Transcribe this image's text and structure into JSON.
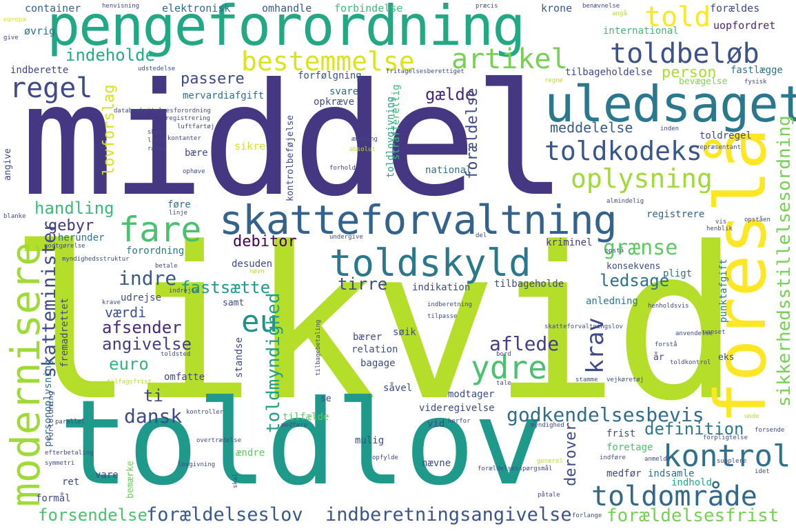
{
  "words": [
    {
      "text": "middel",
      "color": "#453781"
    },
    {
      "text": "likvid",
      "color": "#b5de2b"
    },
    {
      "text": "toldlov",
      "color": "#1f9a8a"
    },
    {
      "text": "pengeforordning",
      "color": "#22a884"
    },
    {
      "text": "uledsaget",
      "color": "#2a788e"
    },
    {
      "text": "foreslå",
      "color": "#fde725"
    },
    {
      "text": "skatteforvaltning",
      "color": "#33638d"
    },
    {
      "text": "toldskyld",
      "color": "#2a788e"
    },
    {
      "text": "modernisere",
      "color": "#a0da39"
    },
    {
      "text": "toldbeløb",
      "color": "#3b528b"
    },
    {
      "text": "toldområde",
      "color": "#31688e"
    },
    {
      "text": "kontrol",
      "color": "#2c728e"
    },
    {
      "text": "toldkodeks",
      "color": "#39568c"
    },
    {
      "text": "oplysning",
      "color": "#a0da39"
    },
    {
      "text": "bestemmelse",
      "color": "#dce319"
    },
    {
      "text": "artikel",
      "color": "#75d054"
    },
    {
      "text": "regel",
      "color": "#3e4a89"
    },
    {
      "text": "fare",
      "color": "#4ac16d"
    },
    {
      "text": "told",
      "color": "#fde725"
    },
    {
      "text": "eu",
      "color": "#21918c"
    },
    {
      "text": "ydre",
      "color": "#4ac16d"
    },
    {
      "text": "grænse",
      "color": "#5ec962"
    },
    {
      "text": "godkendelsesbevis",
      "color": "#2f6c8e"
    },
    {
      "text": "forældelseslov",
      "color": "#38598c"
    },
    {
      "text": "indberetningsangivelse",
      "color": "#3b528b"
    },
    {
      "text": "forældelsesfrist",
      "color": "#75d054"
    },
    {
      "text": "sikkerhedsstillelsesordning",
      "color": "#75d054"
    },
    {
      "text": "skatteminister",
      "color": "#3e4a89"
    },
    {
      "text": "toldmyndighed",
      "color": "#1fa187"
    },
    {
      "text": "krav",
      "color": "#3e4a89"
    },
    {
      "text": "indeholde",
      "color": "#25ab82"
    },
    {
      "text": "passere",
      "color": "#3e4989"
    },
    {
      "text": "person",
      "color": "#a8db34"
    },
    {
      "text": "gælde",
      "color": "#482878"
    },
    {
      "text": "handling",
      "color": "#3aba76"
    },
    {
      "text": "gebyr",
      "color": "#453781"
    },
    {
      "text": "indre",
      "color": "#38598c"
    },
    {
      "text": "fastsætte",
      "color": "#1f9a8a"
    },
    {
      "text": "tirre",
      "color": "#3e4a89"
    },
    {
      "text": "ledsage",
      "color": "#2d708e"
    },
    {
      "text": "afsender",
      "color": "#482878"
    },
    {
      "text": "angivelse",
      "color": "#433e85"
    },
    {
      "text": "aflede",
      "color": "#433e85"
    },
    {
      "text": "dansk",
      "color": "#3e4a89"
    },
    {
      "text": "definition",
      "color": "#2a788e"
    },
    {
      "text": "forsendelse",
      "color": "#4ac16d"
    },
    {
      "text": "euro",
      "color": "#31b57b"
    },
    {
      "text": "værdi",
      "color": "#3b528b"
    },
    {
      "text": "ti",
      "color": "#3e4989"
    },
    {
      "text": "lovforslag",
      "color": "#d8e219"
    },
    {
      "text": "forældelse",
      "color": "#3e4a89"
    },
    {
      "text": "meddelelse",
      "color": "#38598c"
    },
    {
      "text": "debitor",
      "color": "#440154"
    },
    {
      "text": "derover",
      "color": "#3e4a89"
    },
    {
      "text": "container",
      "color": "#33638d"
    },
    {
      "text": "elektronisk",
      "color": "#2f6c8e"
    },
    {
      "text": "omhandle",
      "color": "#38598c"
    },
    {
      "text": "forbindelse",
      "color": "#3dbc74"
    },
    {
      "text": "krone",
      "color": "#38598c"
    },
    {
      "text": "forældes",
      "color": "#3e4a89"
    },
    {
      "text": "uopfordret",
      "color": "#482878"
    },
    {
      "text": "international",
      "color": "#3aba76"
    },
    {
      "text": "øvrig",
      "color": "#2c728e"
    },
    {
      "text": "indberette",
      "color": "#404688"
    },
    {
      "text": "mervardiafgift",
      "color": "#2d708e"
    },
    {
      "text": "forfølgning",
      "color": "#3b528b"
    },
    {
      "text": "tilbageholdelse",
      "color": "#3e4a89"
    },
    {
      "text": "fastlægge",
      "color": "#2c728e"
    },
    {
      "text": "svare",
      "color": "#31688e"
    },
    {
      "text": "opkræve",
      "color": "#3e4a89"
    },
    {
      "text": "bevægelse",
      "color": "#84d44b"
    },
    {
      "text": "registrere",
      "color": "#33638d"
    },
    {
      "text": "national",
      "color": "#2c728e"
    },
    {
      "text": "toldregel",
      "color": "#3e4a89"
    },
    {
      "text": "sikre",
      "color": "#d8e219"
    },
    {
      "text": "bære",
      "color": "#3e4a89"
    },
    {
      "text": "føre",
      "color": "#2c728e"
    },
    {
      "text": "herunder",
      "color": "#2c728e"
    },
    {
      "text": "forordning",
      "color": "#2a788e"
    },
    {
      "text": "desuden",
      "color": "#3e4a89"
    },
    {
      "text": "kriminel",
      "color": "#453781"
    },
    {
      "text": "konsekvens",
      "color": "#3e4a89"
    },
    {
      "text": "pligt",
      "color": "#2c728e"
    },
    {
      "text": "indikation",
      "color": "#3e4a89"
    },
    {
      "text": "tilbageholde",
      "color": "#3e4989"
    },
    {
      "text": "udrejse",
      "color": "#3e4a89"
    },
    {
      "text": "anledning",
      "color": "#2a788e"
    },
    {
      "text": "samt",
      "color": "#3e4a89"
    },
    {
      "text": "søik",
      "color": "#3e4989"
    },
    {
      "text": "bærer",
      "color": "#3e4a89"
    },
    {
      "text": "relation",
      "color": "#3b528b"
    },
    {
      "text": "bagage",
      "color": "#3e4a89"
    },
    {
      "text": "såvel",
      "color": "#3e4989"
    },
    {
      "text": "omfatte",
      "color": "#3e4a89"
    },
    {
      "text": "modtager",
      "color": "#3e4a89"
    },
    {
      "text": "videregivelse",
      "color": "#3e4a89"
    },
    {
      "text": "tilfælde",
      "color": "#5ec962"
    },
    {
      "text": "vid",
      "color": "#3e4a89"
    },
    {
      "text": "mulig",
      "color": "#3e4989"
    },
    {
      "text": "frist",
      "color": "#3e4a89"
    },
    {
      "text": "foretage",
      "color": "#4ac16d"
    },
    {
      "text": "nævne",
      "color": "#3e4a89"
    },
    {
      "text": "medfør",
      "color": "#3e4989"
    },
    {
      "text": "indsamle",
      "color": "#2c728e"
    },
    {
      "text": "indhold",
      "color": "#22a884"
    },
    {
      "text": "ændre",
      "color": "#5ec962"
    },
    {
      "text": "vare",
      "color": "#3e4a89"
    },
    {
      "text": "ret",
      "color": "#3e4989"
    },
    {
      "text": "formål",
      "color": "#3e4a89"
    },
    {
      "text": "bemærke",
      "color": "#6ccd5a"
    },
    {
      "text": "se",
      "color": "#3e4a89"
    },
    {
      "text": "eks",
      "color": "#3e4a89"
    },
    {
      "text": "år",
      "color": "#3e4a89"
    },
    {
      "text": "standse",
      "color": "#3e4a89"
    },
    {
      "text": "personoplysning",
      "color": "#2c728e"
    },
    {
      "text": "fremadrettet",
      "color": "#3e4989"
    },
    {
      "text": "angive",
      "color": "#3e4a89"
    },
    {
      "text": "punktafgift",
      "color": "#2a788e"
    },
    {
      "text": "kontrolbeføjelse",
      "color": "#3e4a89"
    },
    {
      "text": "toldlovgivning",
      "color": "#22a884"
    },
    {
      "text": "strafferetlig",
      "color": "#3aba76"
    },
    {
      "text": "henvisning",
      "color": "#3e4a89"
    },
    {
      "text": "præcis",
      "color": "#3e4a89"
    },
    {
      "text": "benævnelse",
      "color": "#3e4a89"
    },
    {
      "text": "angå",
      "color": "#b5de2b"
    },
    {
      "text": "udstedelse",
      "color": "#3e4a89"
    },
    {
      "text": "fritagelsesberettiget",
      "color": "#3e4a89"
    },
    {
      "text": "regne",
      "color": "#b5de2b"
    },
    {
      "text": "fysisk",
      "color": "#3e4a89"
    },
    {
      "text": "databeskyttelsesforordning",
      "color": "#3e4a89"
    },
    {
      "text": "registrering",
      "color": "#3e4a89"
    },
    {
      "text": "luftfartøj",
      "color": "#3e4a89"
    },
    {
      "text": "skat",
      "color": "#3e4a89"
    },
    {
      "text": "litra",
      "color": "#3e4a89"
    },
    {
      "text": "række",
      "color": "#3e4a89"
    },
    {
      "text": "kontanter",
      "color": "#3e4a89"
    },
    {
      "text": "absolut",
      "color": "#b5de2b"
    },
    {
      "text": "inden",
      "color": "#3e4a89"
    },
    {
      "text": "repræsentant",
      "color": "#3e4a89"
    },
    {
      "text": "ophøve",
      "color": "#3e4a89"
    },
    {
      "text": "forhold",
      "color": "#3e4a89"
    },
    {
      "text": "almindelig",
      "color": "#3e4a89"
    },
    {
      "text": "blanke",
      "color": "#3e4a89"
    },
    {
      "text": "linje",
      "color": "#3e4a89"
    },
    {
      "text": "godtgørelse",
      "color": "#3e4a89"
    },
    {
      "text": "myndighedsstruktur",
      "color": "#3e4a89"
    },
    {
      "text": "undergive",
      "color": "#3e4a89"
    },
    {
      "text": "del",
      "color": "#3e4a89"
    },
    {
      "text": "opstå",
      "color": "#3e4a89"
    },
    {
      "text": "henblik",
      "color": "#3e4a89"
    },
    {
      "text": "opståen",
      "color": "#3e4a89"
    },
    {
      "text": "vis",
      "color": "#3e4a89"
    },
    {
      "text": "betale",
      "color": "#3e4a89"
    },
    {
      "text": "nøvn",
      "color": "#3e4a89"
    },
    {
      "text": "krave",
      "color": "#3e4a89"
    },
    {
      "text": "indrejse",
      "color": "#3e4a89"
    },
    {
      "text": "indberetning",
      "color": "#3e4a89"
    },
    {
      "text": "tilpasse",
      "color": "#3e4a89"
    },
    {
      "text": "henholdsvis",
      "color": "#3e4a89"
    },
    {
      "text": "skatteforvaltningslov",
      "color": "#3e4a89"
    },
    {
      "text": "uanset",
      "color": "#3e4a89"
    },
    {
      "text": "anvendelse",
      "color": "#3e4a89"
    },
    {
      "text": "forstå",
      "color": "#3e4a89"
    },
    {
      "text": "toldsted",
      "color": "#3e4a89"
    },
    {
      "text": "bord",
      "color": "#3e4a89"
    },
    {
      "text": "vejkøretøj",
      "color": "#3e4a89"
    },
    {
      "text": "tilfagsfrist",
      "color": "#3e4a89"
    },
    {
      "text": "tale",
      "color": "#3e4a89"
    },
    {
      "text": "stamme",
      "color": "#3e4a89"
    },
    {
      "text": "toldkontrol",
      "color": "#3e4a89"
    },
    {
      "text": "kontroller",
      "color": "#3e4a89"
    },
    {
      "text": "unde",
      "color": "#3e4a89"
    },
    {
      "text": "parallel",
      "color": "#3e4a89"
    },
    {
      "text": "overtrædelse",
      "color": "#3e4a89"
    },
    {
      "text": "medføre",
      "color": "#3e4a89"
    },
    {
      "text": "herfor",
      "color": "#3e4a89"
    },
    {
      "text": "myndighed",
      "color": "#3e4a89"
    },
    {
      "text": "forpligtelse",
      "color": "#3e4a89"
    },
    {
      "text": "forsende",
      "color": "#3e4a89"
    },
    {
      "text": "efterbetaling",
      "color": "#3e4a89"
    },
    {
      "text": "symmetri",
      "color": "#3e4a89"
    },
    {
      "text": "opfylde",
      "color": "#3e4a89"
    },
    {
      "text": "forældelsesspørgsmål",
      "color": "#3e4a89"
    },
    {
      "text": "generel",
      "color": "#3e4a89"
    },
    {
      "text": "anmelde",
      "color": "#3e4a89"
    },
    {
      "text": "indføre",
      "color": "#3e4a89"
    },
    {
      "text": "supplere",
      "color": "#3e4a89"
    },
    {
      "text": "idet",
      "color": "#3e4a89"
    },
    {
      "text": "lovgivning",
      "color": "#3e4a89"
    },
    {
      "text": "påtale",
      "color": "#3e4a89"
    },
    {
      "text": "forlange",
      "color": "#3e4a89"
    },
    {
      "text": "give",
      "color": "#3e4a89"
    },
    {
      "text": "europa",
      "color": "#3e4a89"
    },
    {
      "text": "ændring",
      "color": "#3e4a89"
    },
    {
      "text": "fortoldning",
      "color": "#3e4a89"
    },
    {
      "text": "tilbagebetaling",
      "color": "#3e4a89"
    },
    {
      "text": "skal",
      "color": "#3e4a89"
    },
    {
      "text": "nå",
      "color": "#3e4a89"
    }
  ]
}
